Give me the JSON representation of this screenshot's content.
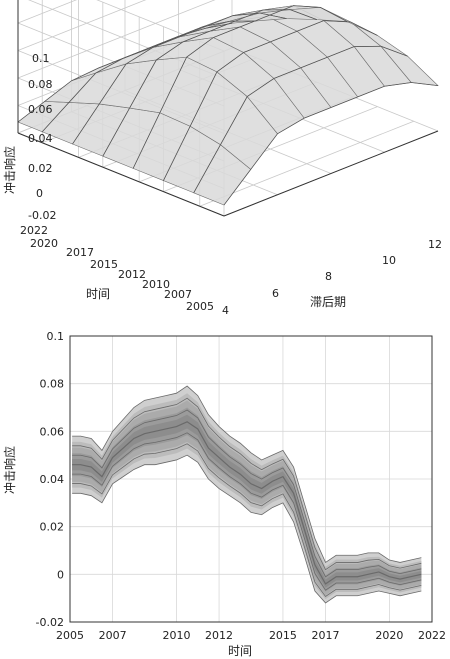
{
  "chart_data": [
    {
      "type": "surface",
      "zlabel": "冲击响应",
      "xlabel": "滞后期",
      "ylabel": "时间",
      "z_ticks": [
        "-0.02",
        "0",
        "0.02",
        "0.04",
        "0.06",
        "0.08",
        "0.1"
      ],
      "z_range": [
        -0.02,
        0.1
      ],
      "lag_ticks": [
        "4",
        "6",
        "8",
        "10",
        "12"
      ],
      "lag_range": [
        4,
        12
      ],
      "time_ticks": [
        "2005",
        "2007",
        "2010",
        "2012",
        "2015",
        "2017",
        "2020",
        "2022"
      ],
      "time_range": [
        2005,
        2022
      ],
      "surface": {
        "lags": [
          4,
          5,
          6,
          7,
          8,
          9,
          10,
          11,
          12
        ],
        "times": [
          2005,
          2007.5,
          2010,
          2012.5,
          2015,
          2017.5,
          2020,
          2022
        ],
        "peak_by_time": [
          0.028,
          0.048,
          0.058,
          0.06,
          0.048,
          0.035,
          0.018,
          0.004
        ]
      },
      "colors": {
        "mesh": "#6f6f6f",
        "face": "#d9d9d9"
      }
    },
    {
      "type": "area",
      "ylabel": "冲击响应",
      "xlabel": "时间",
      "x_ticks": [
        "2005",
        "2007",
        "2010",
        "2012",
        "2015",
        "2017",
        "2020",
        "2022"
      ],
      "y_ticks": [
        "-0.02",
        "0",
        "0.02",
        "0.04",
        "0.06",
        "0.08",
        "0.1"
      ],
      "xlim": [
        2005,
        2022
      ],
      "ylim": [
        -0.02,
        0.1
      ],
      "grid": true,
      "x": [
        2005.1,
        2005.5,
        2006.0,
        2006.5,
        2007.0,
        2007.5,
        2008.0,
        2008.5,
        2009.0,
        2009.5,
        2010.0,
        2010.5,
        2011.0,
        2011.5,
        2012.0,
        2012.5,
        2013.0,
        2013.5,
        2014.0,
        2014.5,
        2015.0,
        2015.5,
        2016.0,
        2016.5,
        2017.0,
        2017.5,
        2018.0,
        2018.5,
        2019.0,
        2019.5,
        2020.0,
        2020.5,
        2021.0,
        2021.5
      ],
      "upper": [
        0.058,
        0.058,
        0.057,
        0.052,
        0.06,
        0.065,
        0.07,
        0.073,
        0.074,
        0.075,
        0.076,
        0.079,
        0.075,
        0.067,
        0.062,
        0.058,
        0.055,
        0.051,
        0.048,
        0.05,
        0.052,
        0.045,
        0.03,
        0.015,
        0.005,
        0.008,
        0.008,
        0.008,
        0.009,
        0.009,
        0.006,
        0.005,
        0.006,
        0.007
      ],
      "median": [
        0.046,
        0.046,
        0.045,
        0.041,
        0.049,
        0.053,
        0.057,
        0.059,
        0.06,
        0.061,
        0.062,
        0.064,
        0.061,
        0.053,
        0.049,
        0.045,
        0.042,
        0.038,
        0.036,
        0.039,
        0.041,
        0.034,
        0.019,
        0.004,
        -0.004,
        -0.001,
        -0.001,
        -0.001,
        0.0,
        0.001,
        -0.001,
        -0.002,
        -0.001,
        0.0
      ],
      "lower": [
        0.034,
        0.034,
        0.033,
        0.03,
        0.038,
        0.041,
        0.044,
        0.046,
        0.046,
        0.047,
        0.048,
        0.05,
        0.047,
        0.04,
        0.036,
        0.033,
        0.03,
        0.026,
        0.025,
        0.028,
        0.03,
        0.022,
        0.008,
        -0.007,
        -0.012,
        -0.009,
        -0.009,
        -0.009,
        -0.008,
        -0.007,
        -0.008,
        -0.009,
        -0.008,
        -0.007
      ],
      "colors": {
        "band_outer": "#c4c4c4",
        "band_inner": "#a2a2a2",
        "lines": "#6a6a6a"
      }
    }
  ]
}
